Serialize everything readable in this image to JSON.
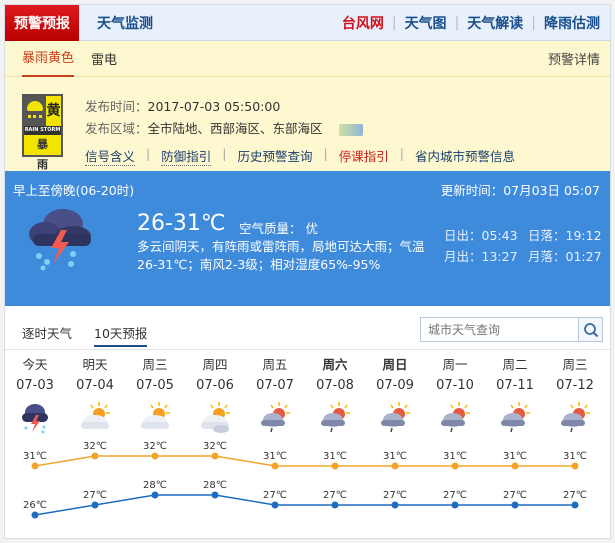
{
  "header": {
    "active_tab": "预警预报",
    "tab2": "天气监测",
    "links": [
      "台风网",
      "天气图",
      "天气解读",
      "降雨估测"
    ]
  },
  "warning": {
    "tabs": [
      "暴雨黄色",
      "雷电"
    ],
    "detail_link": "预警详情",
    "sign": {
      "level": "黄",
      "en": "RAIN STORM",
      "cn": "暴 雨"
    },
    "time_label": "发布时间：",
    "time": "2017-07-03 05:50:00",
    "area_label": "发布区域：",
    "area": "全市陆地、西部海区、东部海区",
    "links": [
      "信号含义",
      "防御指引",
      "历史预警查询",
      "停课指引",
      "省内城市预警信息"
    ]
  },
  "now": {
    "period": "早上至傍晚(06-20时)",
    "update": "更新时间：07月03日 05:07",
    "temp": "26-31℃",
    "aq": "空气质量： 优",
    "desc": "多云间阴天，有阵雨或雷阵雨，局地可达大雨；气温26-31℃；南风2-3级；相对湿度65%-95%",
    "sunrise": "日出：05:43",
    "sunset": "日落：19:12",
    "moonrise": "月出：13:27",
    "moonset": "月落：01:27"
  },
  "tabs": [
    "逐时天气",
    "10天预报"
  ],
  "search": {
    "placeholder": "城市天气查询"
  },
  "colors": {
    "high": "#f0a52a",
    "low": "#1c6cc0",
    "blue_panel": "#3e8bdc",
    "red_tab": "#d0101a"
  },
  "forecast": [
    {
      "week": "今天",
      "date": "07-03",
      "icon": "thunder-rain",
      "bold": false
    },
    {
      "week": "明天",
      "date": "07-04",
      "icon": "sun-cloud",
      "bold": false
    },
    {
      "week": "周三",
      "date": "07-05",
      "icon": "sun-cloud",
      "bold": false
    },
    {
      "week": "周四",
      "date": "07-06",
      "icon": "sun-clouds",
      "bold": false
    },
    {
      "week": "周五",
      "date": "07-07",
      "icon": "sun-cloud-rain",
      "bold": false
    },
    {
      "week": "周六",
      "date": "07-08",
      "icon": "sun-cloud-rain",
      "bold": true
    },
    {
      "week": "周日",
      "date": "07-09",
      "icon": "sun-cloud-rain",
      "bold": true
    },
    {
      "week": "周一",
      "date": "07-10",
      "icon": "sun-cloud-rain",
      "bold": false
    },
    {
      "week": "周二",
      "date": "07-11",
      "icon": "sun-cloud-rain",
      "bold": false
    },
    {
      "week": "周三",
      "date": "07-12",
      "icon": "sun-cloud-rain",
      "bold": false
    }
  ],
  "chart_data": {
    "type": "line",
    "categories": [
      "07-03",
      "07-04",
      "07-05",
      "07-06",
      "07-07",
      "07-08",
      "07-09",
      "07-10",
      "07-11",
      "07-12"
    ],
    "series": [
      {
        "values": [
          31,
          32,
          32,
          32,
          31,
          31,
          31,
          31,
          31,
          31
        ]
      },
      {
        "values": [
          26,
          27,
          28,
          28,
          27,
          27,
          27,
          27,
          27,
          27
        ]
      }
    ],
    "unit": "℃"
  }
}
